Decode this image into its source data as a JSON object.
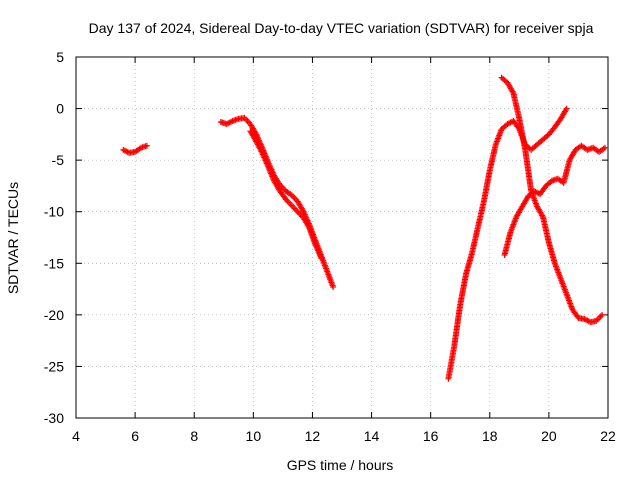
{
  "chart_data": {
    "type": "scatter",
    "title": "Day 137 of 2024, Sidereal Day-to-day VTEC variation (SDTVAR) for receiver spja",
    "xlabel": "GPS time / hours",
    "ylabel": "SDTVAR / TECUs",
    "xlim": [
      4,
      22
    ],
    "ylim": [
      -30,
      5
    ],
    "xticks": [
      4,
      6,
      8,
      10,
      12,
      14,
      16,
      18,
      20,
      22
    ],
    "yticks": [
      5,
      0,
      -5,
      -10,
      -15,
      -20,
      -25,
      -30
    ],
    "grid": true,
    "marker": "+",
    "color": "#ff0000",
    "series": [
      {
        "x": [
          5.6,
          5.8,
          6.0,
          6.2,
          6.4
        ],
        "y": [
          -4.0,
          -4.3,
          -4.2,
          -3.8,
          -3.6
        ]
      },
      {
        "x": [
          8.9,
          9.1,
          9.3,
          9.5,
          9.7,
          9.9,
          10.1,
          10.3,
          10.5,
          10.7,
          10.9,
          11.1,
          11.3,
          11.5,
          11.7,
          11.9,
          12.1,
          12.3,
          12.5,
          12.7
        ],
        "y": [
          -1.3,
          -1.5,
          -1.2,
          -1.0,
          -0.9,
          -1.5,
          -2.5,
          -3.8,
          -5.2,
          -6.5,
          -7.4,
          -8.0,
          -8.4,
          -9.0,
          -10.0,
          -11.3,
          -12.8,
          -14.3,
          -15.8,
          -17.3
        ]
      },
      {
        "x": [
          9.9,
          10.1,
          10.3,
          10.5,
          10.7,
          10.9,
          11.1,
          11.3,
          11.5,
          11.7,
          11.9,
          12.1,
          12.3
        ],
        "y": [
          -2.2,
          -3.2,
          -4.3,
          -5.6,
          -7.0,
          -8.0,
          -8.8,
          -9.4,
          -10.0,
          -10.6,
          -11.6,
          -13.2,
          -14.5
        ]
      },
      {
        "x": [
          16.6,
          16.8,
          17.0,
          17.2,
          17.4,
          17.6,
          17.8,
          18.0,
          18.2,
          18.4,
          18.6,
          18.8,
          19.0,
          19.2,
          19.4,
          19.6,
          19.8,
          20.0,
          20.2,
          20.4,
          20.6
        ],
        "y": [
          -26.2,
          -23.0,
          -19.0,
          -16.0,
          -14.0,
          -11.5,
          -9.0,
          -6.0,
          -3.5,
          -2.0,
          -1.5,
          -1.2,
          -2.0,
          -3.5,
          -4.0,
          -3.5,
          -3.0,
          -2.5,
          -1.8,
          -1.0,
          0.0
        ]
      },
      {
        "x": [
          18.4,
          18.6,
          18.8,
          19.0,
          19.2,
          19.4,
          19.6,
          19.8,
          20.0,
          20.2,
          20.4,
          20.6,
          20.8,
          21.0,
          21.2,
          21.4,
          21.6,
          21.8
        ],
        "y": [
          3.0,
          2.5,
          1.5,
          -1.0,
          -4.0,
          -8.0,
          -9.5,
          -10.5,
          -13.0,
          -15.0,
          -16.5,
          -18.0,
          -19.5,
          -20.3,
          -20.4,
          -20.7,
          -20.6,
          -20.0
        ]
      },
      {
        "x": [
          18.5,
          18.7,
          18.9,
          19.1,
          19.3,
          19.5,
          19.7,
          19.9,
          20.1,
          20.3,
          20.5,
          20.7,
          20.9,
          21.1,
          21.3,
          21.5,
          21.7,
          21.9
        ],
        "y": [
          -14.2,
          -12.0,
          -10.5,
          -9.5,
          -8.5,
          -8.0,
          -8.3,
          -7.5,
          -7.0,
          -6.8,
          -7.2,
          -5.0,
          -4.0,
          -3.6,
          -4.0,
          -3.8,
          -4.2,
          -3.8
        ]
      }
    ]
  }
}
